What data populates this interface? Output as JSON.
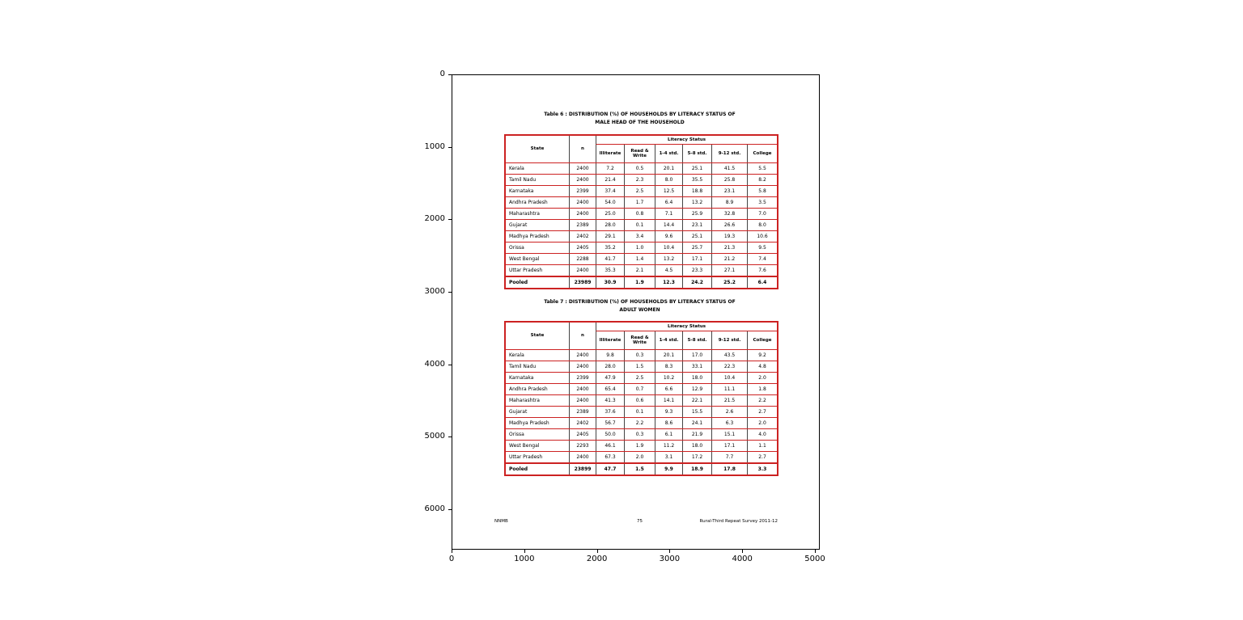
{
  "figure": {
    "x_ticks": [
      "0",
      "1000",
      "2000",
      "3000",
      "4000",
      "5000"
    ],
    "y_ticks": [
      "0",
      "1000",
      "2000",
      "3000",
      "4000",
      "5000",
      "6000"
    ]
  },
  "page": {
    "footer_left": "NNMB",
    "footer_center": "75",
    "footer_right": "Rural-Third Repeat Survey 2011-12",
    "accent_color": "#cc2222"
  },
  "tables": [
    {
      "title_line1": "Table 6 : DISTRIBUTION (%) OF HOUSEHOLDS BY LITERACY STATUS OF",
      "title_line2": "MALE HEAD OF THE HOUSEHOLD",
      "group_header": "Literacy Status",
      "columns": [
        "State",
        "n",
        "Illiterate",
        "Read & Write",
        "1-4 std.",
        "5-8 std.",
        "9-12 std.",
        "College"
      ],
      "rows": [
        [
          "Kerala",
          "2400",
          "7.2",
          "0.5",
          "20.1",
          "25.1",
          "41.5",
          "5.5"
        ],
        [
          "Tamil Nadu",
          "2400",
          "21.4",
          "2.3",
          "8.0",
          "35.5",
          "25.8",
          "8.2"
        ],
        [
          "Karnataka",
          "2399",
          "37.4",
          "2.5",
          "12.5",
          "18.8",
          "23.1",
          "5.8"
        ],
        [
          "Andhra Pradesh",
          "2400",
          "54.0",
          "1.7",
          "6.4",
          "13.2",
          "8.9",
          "3.5"
        ],
        [
          "Maharashtra",
          "2400",
          "25.0",
          "0.8",
          "7.1",
          "25.9",
          "32.8",
          "7.0"
        ],
        [
          "Gujarat",
          "2389",
          "28.0",
          "0.1",
          "14.4",
          "23.1",
          "26.6",
          "8.0"
        ],
        [
          "Madhya Pradesh",
          "2402",
          "29.1",
          "3.4",
          "9.6",
          "25.1",
          "19.3",
          "10.6"
        ],
        [
          "Orissa",
          "2405",
          "35.2",
          "1.0",
          "10.4",
          "25.7",
          "21.3",
          "9.5"
        ],
        [
          "West Bengal",
          "2288",
          "41.7",
          "1.4",
          "13.2",
          "17.1",
          "21.2",
          "7.4"
        ],
        [
          "Uttar Pradesh",
          "2400",
          "35.3",
          "2.1",
          "4.5",
          "23.3",
          "27.1",
          "7.6"
        ],
        [
          "Pooled",
          "23989",
          "30.9",
          "1.9",
          "12.3",
          "24.2",
          "25.2",
          "6.4"
        ]
      ]
    },
    {
      "title_line1": "Table 7 : DISTRIBUTION (%) OF HOUSEHOLDS BY LITERACY STATUS OF",
      "title_line2": "ADULT WOMEN",
      "group_header": "Literacy Status",
      "columns": [
        "State",
        "n",
        "Illiterate",
        "Read & Write",
        "1-4 std.",
        "5-8 std.",
        "9-12 std.",
        "College"
      ],
      "rows": [
        [
          "Kerala",
          "2400",
          "9.8",
          "0.3",
          "20.1",
          "17.0",
          "43.5",
          "9.2"
        ],
        [
          "Tamil Nadu",
          "2400",
          "28.0",
          "1.5",
          "8.3",
          "33.1",
          "22.3",
          "4.8"
        ],
        [
          "Karnataka",
          "2399",
          "47.9",
          "2.5",
          "10.2",
          "18.0",
          "10.4",
          "2.0"
        ],
        [
          "Andhra Pradesh",
          "2400",
          "65.4",
          "0.7",
          "6.6",
          "12.9",
          "11.1",
          "1.8"
        ],
        [
          "Maharashtra",
          "2400",
          "41.3",
          "0.6",
          "14.1",
          "22.1",
          "21.5",
          "2.2"
        ],
        [
          "Gujarat",
          "2389",
          "37.6",
          "0.1",
          "9.3",
          "15.5",
          "2.6",
          "2.7"
        ],
        [
          "Madhya Pradesh",
          "2402",
          "56.7",
          "2.2",
          "8.6",
          "24.1",
          "6.3",
          "2.0"
        ],
        [
          "Orissa",
          "2405",
          "50.0",
          "0.3",
          "6.1",
          "21.9",
          "15.1",
          "4.0"
        ],
        [
          "West Bengal",
          "2293",
          "46.1",
          "1.9",
          "11.2",
          "18.0",
          "17.1",
          "1.1"
        ],
        [
          "Uttar Pradesh",
          "2400",
          "67.3",
          "2.0",
          "3.1",
          "17.2",
          "7.7",
          "2.7"
        ],
        [
          "Pooled",
          "23899",
          "47.7",
          "1.5",
          "9.9",
          "18.9",
          "17.8",
          "3.3"
        ]
      ]
    }
  ]
}
